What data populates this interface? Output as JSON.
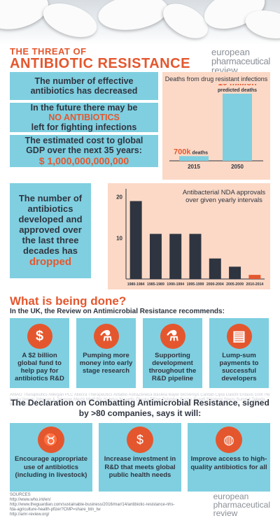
{
  "header": {
    "title_line1": "THE THREAT OF",
    "title_line2": "ANTIBIOTIC RESISTANCE",
    "logo": {
      "line1": "european",
      "line2": "pharmaceutical",
      "line3": "review"
    }
  },
  "facts": {
    "fact1": "The number of effective antibiotics has decreased",
    "fact2_a": "In the future there may be",
    "fact2_b": "NO ANTIBIOTICS",
    "fact2_c": "left for fighting infections",
    "fact3_a": "The estimated cost to global GDP over the next 35 years:",
    "fact3_b": "$ 1,000,000,000,000"
  },
  "dropped": {
    "text": "The number of antibiotics developed and approved over the last three decades has",
    "highlight": "dropped"
  },
  "chart_data": [
    {
      "type": "bar",
      "title": "Deaths from drug resistant infections",
      "categories": [
        "2015",
        "2050"
      ],
      "values": [
        700000,
        10000000
      ],
      "value_labels": [
        {
          "big": "700k",
          "small": "deaths"
        },
        {
          "big": "10 million",
          "small": "predicted deaths"
        }
      ],
      "colors": [
        "#7fcfe0",
        "#7fcfe0"
      ],
      "ylim": [
        0,
        10000000
      ]
    },
    {
      "type": "bar",
      "title": "Antibacterial NDA approvals over given yearly intervals",
      "categories": [
        "1980-1984",
        "1985-1989",
        "1990-1994",
        "1995-1999",
        "2000-2004",
        "2005-2009",
        "2010-2014"
      ],
      "values": [
        19,
        11,
        11,
        11,
        5,
        3,
        1
      ],
      "yticks": [
        10,
        20
      ],
      "ylim": [
        0,
        22
      ],
      "colors": [
        "#2f3540",
        "#2f3540",
        "#2f3540",
        "#2f3540",
        "#2f3540",
        "#2f3540",
        "#e4572e"
      ]
    }
  ],
  "done": {
    "heading": "What is being done?",
    "subheading": "In the UK, the Review on Antimicrobial Resistance recommends:",
    "cards": [
      {
        "icon": "dollar-icon",
        "glyph": "$",
        "text": "A $2 billion global fund to help pay for antibiotics R&D"
      },
      {
        "icon": "microscope-icon",
        "glyph": "⚗",
        "text": "Pumping more money into early stage research"
      },
      {
        "icon": "flask-icon",
        "glyph": "⚗",
        "text": "Supporting development throughout the R&D pipeline"
      },
      {
        "icon": "ticket-icon",
        "glyph": "▤",
        "text": "Lump-sum payments to successful developers"
      }
    ]
  },
  "declaration": {
    "heading": "The Declaration on Combatting Antimicrobial Resistance, signed by >80 companies, says it will:",
    "background_names": "AMAG Therapeutics Allergan PLC Allecra Therapeutics Antabio AstraZeneca Basilea Bayer BioVersys Cantab Cipla Daiichi Entasis GSK Helperby Iterum Johnson & Johnson Merck Motif Bio Nabriva Novartis Otsuka Pfizer Polyphor Roche Sanofi Shionogi Spero Summit Takeda Wockhardt",
    "pledges": [
      {
        "icon": "cow-icon",
        "glyph": "♉",
        "text": "Encourage appropriate use of antibiotics (including in livestock)"
      },
      {
        "icon": "dollar-icon",
        "glyph": "$",
        "text": "Increase investment in R&D that meets global public health needs"
      },
      {
        "icon": "globe-icon",
        "glyph": "◍",
        "text": "Improve access to high-quality antibiotics for all"
      }
    ]
  },
  "sources": {
    "label": "SOURCES",
    "lines": [
      "http://www.who.int/en/",
      "http://www.theguardian.com/sustainable-business/2016/mar/14/antibiotic-resistance-nhs-fda-agriculture-health-pfizer?CMP=share_btn_tw",
      "http://amr-review.org/"
    ]
  }
}
